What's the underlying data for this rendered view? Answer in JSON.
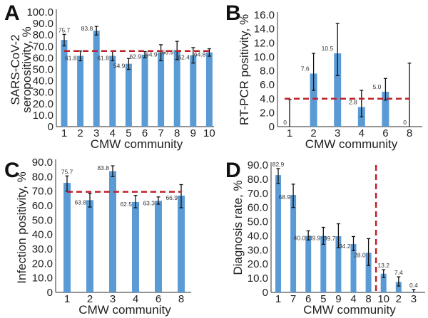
{
  "chart_data": [
    {
      "panel": "A",
      "type": "bar",
      "xlabel": "CMW community",
      "ylabel_lines": [
        "SARS-CoV-2",
        "seropositivity, %"
      ],
      "ylim": [
        0,
        100
      ],
      "yticks": [
        "0",
        "10.0",
        "20.0",
        "30.0",
        "40.0",
        "50.0",
        "60.0",
        "70.0",
        "80.0",
        "90.0",
        "100.0"
      ],
      "ytick_values": [
        0,
        10,
        20,
        30,
        40,
        50,
        60,
        70,
        80,
        90,
        100
      ],
      "categories": [
        "1",
        "2",
        "3",
        "4",
        "5",
        "6",
        "7",
        "8",
        "9",
        "10"
      ],
      "values": [
        75.7,
        61.8,
        83.8,
        61.8,
        54.9,
        62.9,
        64.9,
        66.9,
        62.4,
        64.8
      ],
      "labels": [
        "75.7",
        "61.8",
        "83.8",
        "61.8",
        "54.9",
        "62.9",
        "64.9",
        "66.9",
        "62.4",
        "64.8"
      ],
      "error_low": [
        70.5,
        57.5,
        80.0,
        57.5,
        50.0,
        60.2,
        57.5,
        58.5,
        55.5,
        61.5
      ],
      "error_high": [
        80.5,
        66.0,
        87.5,
        66.0,
        59.5,
        65.5,
        71.5,
        74.5,
        69.0,
        68.0
      ],
      "reference_line": {
        "orientation": "horizontal",
        "value": 66.0
      },
      "grid": false
    },
    {
      "panel": "B",
      "type": "bar",
      "xlabel": "CMW community",
      "ylabel_lines": [
        "RT-PCR positivity, %"
      ],
      "ylim": [
        0,
        16
      ],
      "yticks": [
        "0",
        "2.0",
        "4.0",
        "6.0",
        "8.0",
        "10.0",
        "12.0",
        "14.0",
        "16.0"
      ],
      "ytick_values": [
        0,
        2,
        4,
        6,
        8,
        10,
        12,
        14,
        16
      ],
      "categories": [
        "1",
        "2",
        "3",
        "4",
        "6",
        "8"
      ],
      "values": [
        0,
        7.6,
        10.5,
        2.8,
        5.0,
        0
      ],
      "labels": [
        "0",
        "7.6",
        "10.5",
        "2.8",
        "5.0",
        "0"
      ],
      "error_low": [
        0,
        5.2,
        7.3,
        1.4,
        3.8,
        0
      ],
      "error_high": [
        3.9,
        10.5,
        14.8,
        5.2,
        6.9,
        9.1
      ],
      "reference_line": {
        "orientation": "horizontal",
        "value": 4.0
      },
      "grid": false
    },
    {
      "panel": "C",
      "type": "bar",
      "xlabel": "CMW community",
      "ylabel_lines": [
        "Infection positivity, %"
      ],
      "ylim": [
        0,
        90
      ],
      "yticks": [
        "0",
        "10.0",
        "20.0",
        "30.0",
        "40.0",
        "50.0",
        "60.0",
        "70.0",
        "80.0",
        "90.0"
      ],
      "ytick_values": [
        0,
        10,
        20,
        30,
        40,
        50,
        60,
        70,
        80,
        90
      ],
      "categories": [
        "1",
        "2",
        "3",
        "4",
        "6",
        "8"
      ],
      "values": [
        75.7,
        63.8,
        83.8,
        62.5,
        63.3,
        66.9
      ],
      "labels": [
        "75.7",
        "63.8",
        "83.8",
        "62.5",
        "63.3",
        "66.9"
      ],
      "error_low": [
        70.0,
        59.0,
        80.0,
        58.5,
        61.0,
        58.5
      ],
      "error_high": [
        80.5,
        68.5,
        87.5,
        67.0,
        66.0,
        74.5
      ],
      "reference_line": {
        "orientation": "horizontal",
        "value": 69.5
      },
      "grid": false
    },
    {
      "panel": "D",
      "type": "bar",
      "xlabel": "CMW community",
      "ylabel_lines": [
        "Diagnosis rate, %"
      ],
      "ylim": [
        0,
        90
      ],
      "yticks": [
        "0",
        "10.0",
        "20.0",
        "30.0",
        "40.0",
        "50.0",
        "60.0",
        "70.0",
        "80.0",
        "90.0"
      ],
      "ytick_values": [
        0,
        10,
        20,
        30,
        40,
        50,
        60,
        70,
        80,
        90
      ],
      "categories": [
        "1",
        "7",
        "6",
        "5",
        "9",
        "4",
        "8",
        "10",
        "2",
        "3"
      ],
      "values": [
        82.9,
        68.9,
        40.0,
        39.9,
        39.7,
        34.2,
        28.0,
        13.2,
        7.4,
        0.4
      ],
      "labels": [
        "82.9",
        "68.9",
        "40.0",
        "39.9",
        "39.7",
        "34.2",
        "28.0",
        "13.2",
        "7.4",
        "0.4"
      ],
      "error_low": [
        77.0,
        60.0,
        37.0,
        34.0,
        31.5,
        29.5,
        19.0,
        10.5,
        4.5,
        0
      ],
      "error_high": [
        87.5,
        76.5,
        43.5,
        46.0,
        48.5,
        39.5,
        38.0,
        16.0,
        11.0,
        2.0
      ],
      "reference_line": {
        "orientation": "vertical",
        "between_categories": [
          "8",
          "10"
        ]
      },
      "grid": false
    }
  ]
}
